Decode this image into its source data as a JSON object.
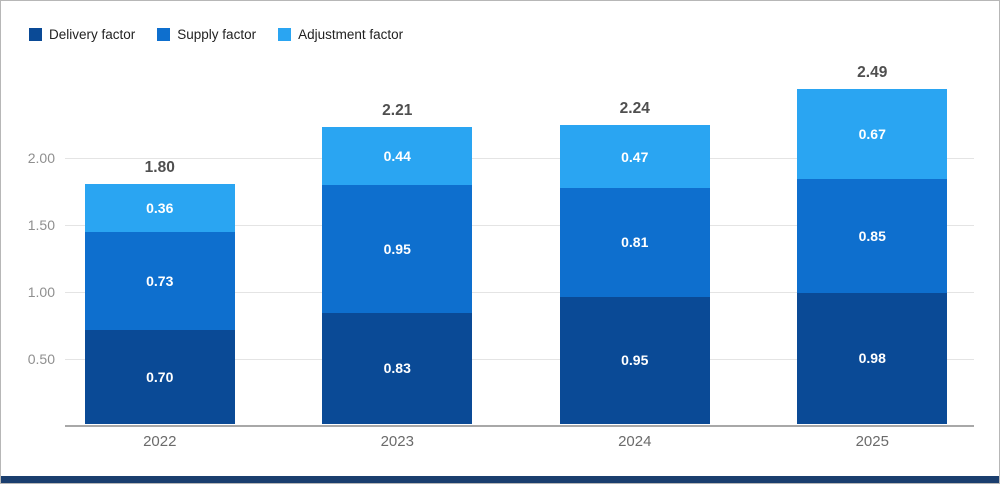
{
  "chart_data": {
    "type": "bar",
    "stacked": true,
    "title": "",
    "xlabel": "",
    "ylabel": "",
    "categories": [
      "2022",
      "2023",
      "2024",
      "2025"
    ],
    "series": [
      {
        "name": "Delivery factor",
        "color": "#0a4a96",
        "values": [
          0.7,
          0.83,
          0.95,
          0.98
        ]
      },
      {
        "name": "Supply factor",
        "color": "#0e6fce",
        "values": [
          0.73,
          0.95,
          0.81,
          0.85
        ]
      },
      {
        "name": "Adjustment factor",
        "color": "#2aa5f2",
        "values": [
          0.36,
          0.44,
          0.47,
          0.67
        ]
      }
    ],
    "totals": [
      "1.80",
      "2.21",
      "2.24",
      "2.49"
    ],
    "y_ticks": [
      "0.50",
      "1.00",
      "1.50",
      "2.00"
    ],
    "ylim": [
      0,
      2.6
    ],
    "grid": true,
    "legend_position": "top-left"
  },
  "colors": {
    "grid": "#e4e4e4",
    "axis": "#a8a8a8",
    "total_label": "#4f4f4f",
    "tick_label": "#8f8f8f",
    "category_label": "#6b6b6b",
    "segment_label": "#ffffff",
    "bottom_stripe": "#1a3e6e"
  }
}
